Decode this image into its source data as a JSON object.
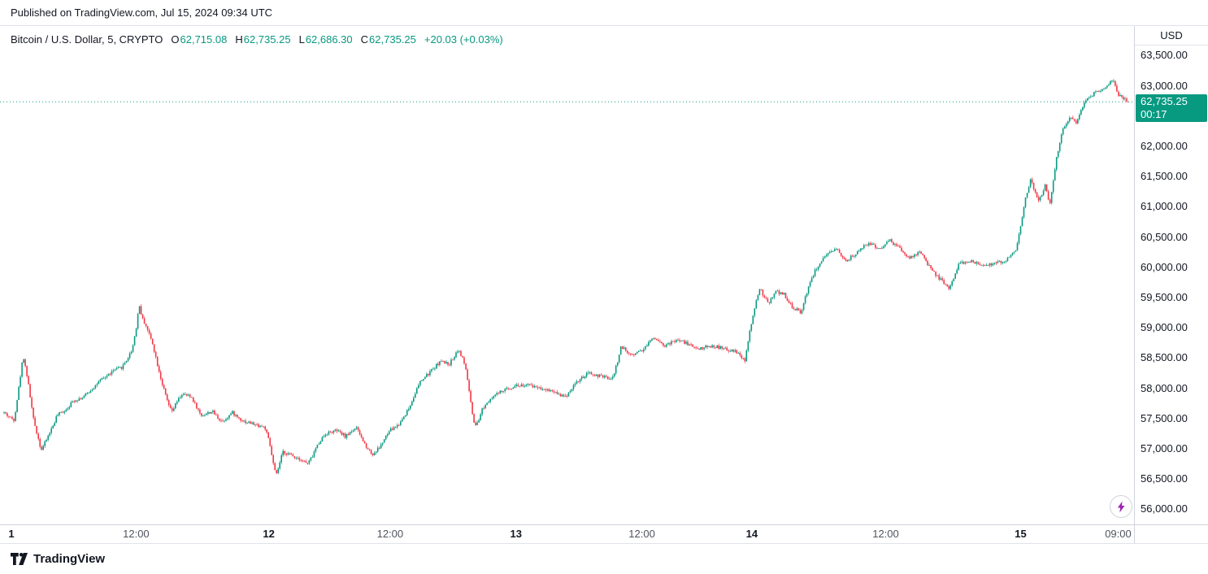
{
  "published_bar": {
    "text": "Published on TradingView.com, Jul 15, 2024 09:34 UTC"
  },
  "legend": {
    "title": "Bitcoin / U.S. Dollar, 5, CRYPTO",
    "ohlc": [
      {
        "label": "O",
        "value": "62,715.08"
      },
      {
        "label": "H",
        "value": "62,735.25"
      },
      {
        "label": "L",
        "value": "62,686.30"
      },
      {
        "label": "C",
        "value": "62,735.25"
      }
    ],
    "change": "+20.03 (+0.03%)"
  },
  "price_axis": {
    "currency_label": "USD",
    "badge": {
      "price": "62,735.25",
      "countdown": "00:17"
    }
  },
  "footer": {
    "brand": "TradingView"
  },
  "colors": {
    "up": "#089981",
    "down": "#f23645",
    "bolt": "#9c27b0"
  },
  "chart_data": {
    "type": "candlestick",
    "title": "Bitcoin / U.S. Dollar",
    "exchange": "CRYPTO",
    "interval_minutes": 5,
    "current_price": 62735.25,
    "up_color": "#089981",
    "down_color": "#f23645",
    "y_axis": {
      "min": 55750,
      "max": 63990,
      "tick_values": [
        63500,
        63000,
        62500,
        62000,
        61500,
        61000,
        60500,
        60000,
        59500,
        59000,
        58500,
        58000,
        57500,
        57000,
        56500,
        56000
      ]
    },
    "x_ticks": [
      {
        "pos": 0.01,
        "label": "1",
        "strong": true
      },
      {
        "pos": 0.12,
        "label": "12:00",
        "strong": false
      },
      {
        "pos": 0.237,
        "label": "12",
        "strong": true
      },
      {
        "pos": 0.344,
        "label": "12:00",
        "strong": false
      },
      {
        "pos": 0.455,
        "label": "13",
        "strong": true
      },
      {
        "pos": 0.566,
        "label": "12:00",
        "strong": false
      },
      {
        "pos": 0.663,
        "label": "14",
        "strong": true
      },
      {
        "pos": 0.781,
        "label": "12:00",
        "strong": false
      },
      {
        "pos": 0.9,
        "label": "15",
        "strong": true
      },
      {
        "pos": 0.986,
        "label": "09:00",
        "strong": false
      }
    ],
    "render": {
      "num_candles": 690,
      "seed": 42,
      "noise": 55,
      "wick": 34
    },
    "price_path": [
      [
        0.0,
        57600
      ],
      [
        0.005,
        57520
      ],
      [
        0.009,
        57480
      ],
      [
        0.013,
        58000
      ],
      [
        0.017,
        58550
      ],
      [
        0.021,
        58150
      ],
      [
        0.026,
        57500
      ],
      [
        0.03,
        57200
      ],
      [
        0.033,
        56980
      ],
      [
        0.037,
        57120
      ],
      [
        0.04,
        57250
      ],
      [
        0.044,
        57400
      ],
      [
        0.047,
        57550
      ],
      [
        0.055,
        57650
      ],
      [
        0.062,
        57800
      ],
      [
        0.07,
        57850
      ],
      [
        0.076,
        57950
      ],
      [
        0.084,
        58100
      ],
      [
        0.091,
        58200
      ],
      [
        0.098,
        58300
      ],
      [
        0.105,
        58350
      ],
      [
        0.11,
        58500
      ],
      [
        0.114,
        58650
      ],
      [
        0.118,
        59050
      ],
      [
        0.12,
        59400
      ],
      [
        0.123,
        59150
      ],
      [
        0.126,
        59050
      ],
      [
        0.129,
        58900
      ],
      [
        0.132,
        58750
      ],
      [
        0.137,
        58350
      ],
      [
        0.141,
        58050
      ],
      [
        0.145,
        57800
      ],
      [
        0.149,
        57600
      ],
      [
        0.153,
        57750
      ],
      [
        0.158,
        57900
      ],
      [
        0.163,
        57880
      ],
      [
        0.167,
        57850
      ],
      [
        0.171,
        57700
      ],
      [
        0.175,
        57550
      ],
      [
        0.18,
        57580
      ],
      [
        0.185,
        57620
      ],
      [
        0.19,
        57520
      ],
      [
        0.194,
        57450
      ],
      [
        0.199,
        57530
      ],
      [
        0.203,
        57600
      ],
      [
        0.208,
        57520
      ],
      [
        0.214,
        57450
      ],
      [
        0.219,
        57430
      ],
      [
        0.223,
        57400
      ],
      [
        0.228,
        57380
      ],
      [
        0.232,
        57350
      ],
      [
        0.236,
        57100
      ],
      [
        0.24,
        56700
      ],
      [
        0.242,
        56550
      ],
      [
        0.245,
        56750
      ],
      [
        0.248,
        56950
      ],
      [
        0.252,
        56920
      ],
      [
        0.255,
        56900
      ],
      [
        0.258,
        56870
      ],
      [
        0.262,
        56850
      ],
      [
        0.266,
        56800
      ],
      [
        0.27,
        56750
      ],
      [
        0.274,
        56870
      ],
      [
        0.277,
        57000
      ],
      [
        0.281,
        57130
      ],
      [
        0.286,
        57250
      ],
      [
        0.291,
        57280
      ],
      [
        0.296,
        57300
      ],
      [
        0.3,
        57250
      ],
      [
        0.304,
        57200
      ],
      [
        0.308,
        57280
      ],
      [
        0.313,
        57350
      ],
      [
        0.317,
        57220
      ],
      [
        0.32,
        57100
      ],
      [
        0.324,
        57000
      ],
      [
        0.328,
        56900
      ],
      [
        0.331,
        56970
      ],
      [
        0.335,
        57050
      ],
      [
        0.339,
        57180
      ],
      [
        0.343,
        57300
      ],
      [
        0.347,
        57350
      ],
      [
        0.351,
        57400
      ],
      [
        0.356,
        57550
      ],
      [
        0.361,
        57700
      ],
      [
        0.365,
        57900
      ],
      [
        0.37,
        58100
      ],
      [
        0.374,
        58180
      ],
      [
        0.378,
        58250
      ],
      [
        0.383,
        58350
      ],
      [
        0.388,
        58450
      ],
      [
        0.392,
        58420
      ],
      [
        0.396,
        58400
      ],
      [
        0.4,
        58520
      ],
      [
        0.404,
        58650
      ],
      [
        0.408,
        58480
      ],
      [
        0.411,
        58300
      ],
      [
        0.414,
        57900
      ],
      [
        0.417,
        57500
      ],
      [
        0.419,
        57350
      ],
      [
        0.422,
        57450
      ],
      [
        0.425,
        57650
      ],
      [
        0.429,
        57750
      ],
      [
        0.433,
        57850
      ],
      [
        0.438,
        57900
      ],
      [
        0.443,
        57950
      ],
      [
        0.449,
        58000
      ],
      [
        0.455,
        58050
      ],
      [
        0.461,
        58050
      ],
      [
        0.467,
        58050
      ],
      [
        0.472,
        58030
      ],
      [
        0.478,
        58000
      ],
      [
        0.483,
        57980
      ],
      [
        0.489,
        57950
      ],
      [
        0.494,
        57900
      ],
      [
        0.499,
        57850
      ],
      [
        0.504,
        57980
      ],
      [
        0.509,
        58100
      ],
      [
        0.515,
        58180
      ],
      [
        0.52,
        58250
      ],
      [
        0.525,
        58220
      ],
      [
        0.53,
        58200
      ],
      [
        0.535,
        58180
      ],
      [
        0.541,
        58150
      ],
      [
        0.545,
        58400
      ],
      [
        0.549,
        58700
      ],
      [
        0.553,
        58620
      ],
      [
        0.558,
        58550
      ],
      [
        0.563,
        58600
      ],
      [
        0.569,
        58650
      ],
      [
        0.573,
        58750
      ],
      [
        0.578,
        58850
      ],
      [
        0.583,
        58780
      ],
      [
        0.588,
        58700
      ],
      [
        0.593,
        58750
      ],
      [
        0.598,
        58800
      ],
      [
        0.602,
        58780
      ],
      [
        0.607,
        58750
      ],
      [
        0.612,
        58700
      ],
      [
        0.617,
        58650
      ],
      [
        0.623,
        58680
      ],
      [
        0.629,
        58700
      ],
      [
        0.635,
        58680
      ],
      [
        0.641,
        58650
      ],
      [
        0.646,
        58620
      ],
      [
        0.652,
        58600
      ],
      [
        0.655,
        58520
      ],
      [
        0.659,
        58450
      ],
      [
        0.662,
        58800
      ],
      [
        0.665,
        59100
      ],
      [
        0.668,
        59350
      ],
      [
        0.672,
        59650
      ],
      [
        0.676,
        59520
      ],
      [
        0.68,
        59400
      ],
      [
        0.683,
        59500
      ],
      [
        0.687,
        59600
      ],
      [
        0.69,
        59580
      ],
      [
        0.694,
        59550
      ],
      [
        0.697,
        59450
      ],
      [
        0.701,
        59350
      ],
      [
        0.705,
        59300
      ],
      [
        0.709,
        59250
      ],
      [
        0.712,
        59480
      ],
      [
        0.716,
        59700
      ],
      [
        0.719,
        59850
      ],
      [
        0.723,
        60000
      ],
      [
        0.727,
        60100
      ],
      [
        0.732,
        60200
      ],
      [
        0.736,
        60250
      ],
      [
        0.741,
        60300
      ],
      [
        0.745,
        60200
      ],
      [
        0.75,
        60100
      ],
      [
        0.754,
        60180
      ],
      [
        0.759,
        60250
      ],
      [
        0.764,
        60330
      ],
      [
        0.77,
        60400
      ],
      [
        0.774,
        60350
      ],
      [
        0.779,
        60300
      ],
      [
        0.783,
        60380
      ],
      [
        0.788,
        60450
      ],
      [
        0.792,
        60380
      ],
      [
        0.797,
        60300
      ],
      [
        0.801,
        60220
      ],
      [
        0.806,
        60150
      ],
      [
        0.81,
        60200
      ],
      [
        0.815,
        60250
      ],
      [
        0.82,
        60100
      ],
      [
        0.825,
        59950
      ],
      [
        0.829,
        59870
      ],
      [
        0.833,
        59800
      ],
      [
        0.837,
        59720
      ],
      [
        0.841,
        59650
      ],
      [
        0.845,
        59850
      ],
      [
        0.849,
        60050
      ],
      [
        0.854,
        60080
      ],
      [
        0.859,
        60100
      ],
      [
        0.864,
        60080
      ],
      [
        0.87,
        60050
      ],
      [
        0.875,
        60050
      ],
      [
        0.88,
        60050
      ],
      [
        0.885,
        60080
      ],
      [
        0.891,
        60100
      ],
      [
        0.895,
        60200
      ],
      [
        0.9,
        60300
      ],
      [
        0.904,
        60650
      ],
      [
        0.907,
        61000
      ],
      [
        0.91,
        61250
      ],
      [
        0.913,
        61450
      ],
      [
        0.916,
        61280
      ],
      [
        0.92,
        61100
      ],
      [
        0.923,
        61220
      ],
      [
        0.926,
        61350
      ],
      [
        0.928,
        61200
      ],
      [
        0.93,
        61050
      ],
      [
        0.933,
        61400
      ],
      [
        0.936,
        61800
      ],
      [
        0.939,
        62050
      ],
      [
        0.942,
        62300
      ],
      [
        0.945,
        62400
      ],
      [
        0.948,
        62500
      ],
      [
        0.951,
        62450
      ],
      [
        0.954,
        62400
      ],
      [
        0.957,
        62550
      ],
      [
        0.96,
        62700
      ],
      [
        0.962,
        62750
      ],
      [
        0.965,
        62800
      ],
      [
        0.968,
        62850
      ],
      [
        0.971,
        62900
      ],
      [
        0.974,
        62930
      ],
      [
        0.977,
        62950
      ],
      [
        0.98,
        63000
      ],
      [
        0.983,
        63050
      ],
      [
        0.987,
        63100
      ],
      [
        0.989,
        62980
      ],
      [
        0.991,
        62850
      ],
      [
        0.994,
        62820
      ],
      [
        0.996,
        62800
      ],
      [
        0.998,
        62770
      ],
      [
        1.0,
        62735
      ]
    ]
  }
}
